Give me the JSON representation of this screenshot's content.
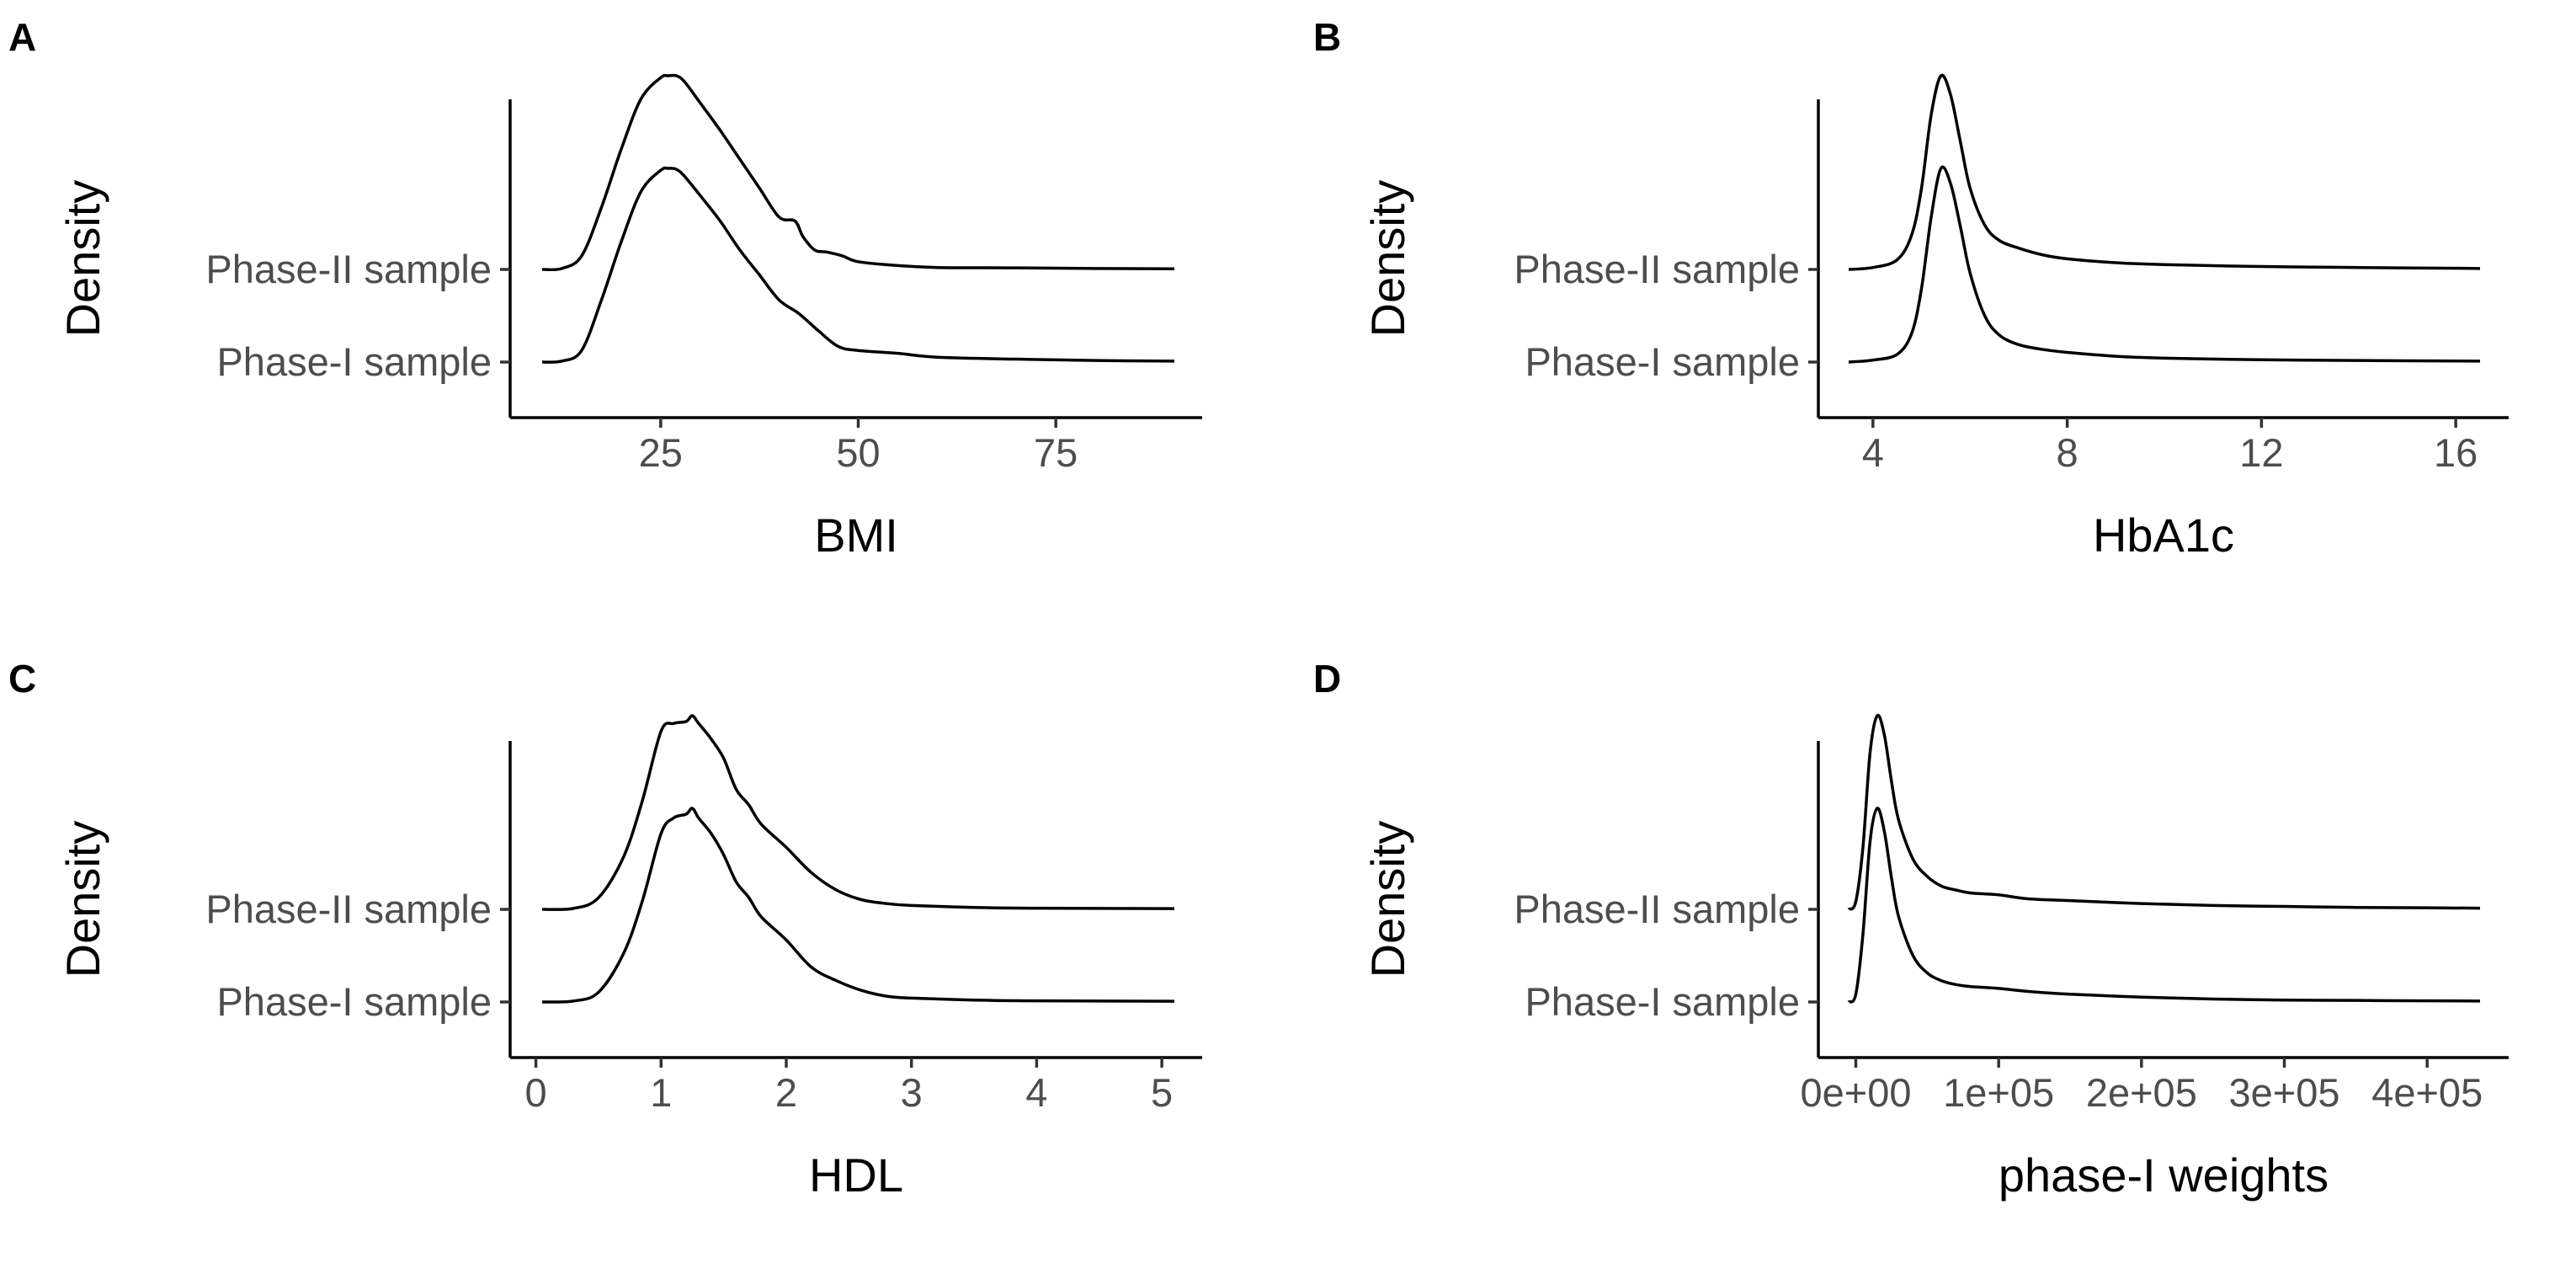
{
  "figure": {
    "chart_data": [
      {
        "panel": "A",
        "type": "area",
        "kind": "ridgeline-density",
        "xlabel": "BMI",
        "ylabel": "Density",
        "xlim": [
          10,
          90
        ],
        "xticks": [
          25,
          50,
          75
        ],
        "xtick_labels": [
          "25",
          "50",
          "75"
        ],
        "categories": [
          "Phase-I sample",
          "Phase-II sample"
        ],
        "series": [
          {
            "name": "Phase-I sample",
            "x": [
              10,
              12.5,
              15,
              17.5,
              20,
              22.5,
              25,
              26,
              27,
              28,
              30,
              32.5,
              35,
              37.5,
              40,
              42.5,
              45,
              47.5,
              50,
              55,
              60,
              70,
              80,
              90
            ],
            "y": [
              0.0,
              0.005,
              0.06,
              0.32,
              0.62,
              0.88,
              0.99,
              1.0,
              0.995,
              0.96,
              0.86,
              0.73,
              0.58,
              0.45,
              0.32,
              0.25,
              0.16,
              0.08,
              0.06,
              0.045,
              0.025,
              0.015,
              0.008,
              0.005
            ]
          },
          {
            "name": "Phase-II sample",
            "x": [
              10,
              12.5,
              15,
              17.5,
              20,
              22.5,
              25,
              26,
              27,
              28,
              30,
              32.5,
              35,
              37.5,
              40,
              42,
              43,
              44.5,
              46,
              48,
              50,
              55,
              60,
              70,
              80,
              90
            ],
            "y": [
              0.0,
              0.005,
              0.07,
              0.32,
              0.62,
              0.88,
              0.99,
              1.0,
              1.0,
              0.97,
              0.86,
              0.72,
              0.57,
              0.42,
              0.27,
              0.25,
              0.17,
              0.1,
              0.09,
              0.07,
              0.04,
              0.02,
              0.01,
              0.008,
              0.005,
              0.003
            ]
          }
        ]
      },
      {
        "panel": "B",
        "type": "area",
        "kind": "ridgeline-density",
        "xlabel": "HbA1c",
        "ylabel": "Density",
        "xlim": [
          3.5,
          16.5
        ],
        "xticks": [
          4,
          8,
          12,
          16
        ],
        "xtick_labels": [
          "4",
          "8",
          "12",
          "16"
        ],
        "categories": [
          "Phase-I sample",
          "Phase-II sample"
        ],
        "series": [
          {
            "name": "Phase-I sample",
            "x": [
              3.5,
              4.0,
              4.5,
              4.8,
              5.0,
              5.2,
              5.4,
              5.6,
              5.8,
              6.0,
              6.3,
              6.6,
              7.0,
              7.5,
              8.0,
              9.0,
              10,
              12,
              14,
              16.5
            ],
            "y": [
              0.0,
              0.01,
              0.04,
              0.15,
              0.38,
              0.75,
              1.0,
              0.92,
              0.7,
              0.46,
              0.24,
              0.14,
              0.09,
              0.065,
              0.05,
              0.03,
              0.02,
              0.012,
              0.008,
              0.005
            ]
          },
          {
            "name": "Phase-II sample",
            "x": [
              3.5,
              4.0,
              4.5,
              4.8,
              5.0,
              5.2,
              5.4,
              5.6,
              5.8,
              6.0,
              6.3,
              6.6,
              7.0,
              7.5,
              8.0,
              9.0,
              10,
              12,
              14,
              16.5
            ],
            "y": [
              0.0,
              0.01,
              0.05,
              0.18,
              0.42,
              0.8,
              1.0,
              0.9,
              0.66,
              0.42,
              0.23,
              0.15,
              0.11,
              0.075,
              0.055,
              0.035,
              0.025,
              0.015,
              0.01,
              0.005
            ]
          }
        ]
      },
      {
        "panel": "C",
        "type": "area",
        "kind": "ridgeline-density",
        "xlabel": "HDL",
        "ylabel": "Density",
        "xlim": [
          0.05,
          5.1
        ],
        "xticks": [
          0,
          1,
          2,
          3,
          4,
          5
        ],
        "xtick_labels": [
          "0",
          "1",
          "2",
          "3",
          "4",
          "5"
        ],
        "categories": [
          "Phase-I sample",
          "Phase-II sample"
        ],
        "series": [
          {
            "name": "Phase-I sample",
            "x": [
              0.05,
              0.3,
              0.5,
              0.7,
              0.85,
              1.0,
              1.1,
              1.2,
              1.25,
              1.3,
              1.4,
              1.5,
              1.6,
              1.7,
              1.8,
              2.0,
              2.2,
              2.4,
              2.6,
              2.8,
              3.0,
              3.5,
              4.0,
              5.1
            ],
            "y": [
              0.0,
              0.005,
              0.05,
              0.25,
              0.52,
              0.87,
              0.95,
              0.97,
              1.0,
              0.95,
              0.87,
              0.76,
              0.62,
              0.54,
              0.44,
              0.32,
              0.18,
              0.11,
              0.06,
              0.03,
              0.02,
              0.01,
              0.006,
              0.004
            ]
          },
          {
            "name": "Phase-II sample",
            "x": [
              0.05,
              0.3,
              0.5,
              0.7,
              0.85,
              1.0,
              1.1,
              1.2,
              1.25,
              1.3,
              1.4,
              1.5,
              1.6,
              1.7,
              1.8,
              2.0,
              2.2,
              2.4,
              2.6,
              2.8,
              3.0,
              3.5,
              4.0,
              5.1
            ],
            "y": [
              0.0,
              0.005,
              0.06,
              0.27,
              0.56,
              0.92,
              0.96,
              0.97,
              1.0,
              0.96,
              0.88,
              0.78,
              0.62,
              0.54,
              0.44,
              0.32,
              0.19,
              0.1,
              0.05,
              0.03,
              0.02,
              0.01,
              0.006,
              0.004
            ]
          }
        ]
      },
      {
        "panel": "D",
        "type": "area",
        "kind": "ridgeline-density",
        "xlabel": "phase-I weights",
        "ylabel": "Density",
        "xlim": [
          -5000,
          437000
        ],
        "xticks": [
          0,
          100000,
          200000,
          300000,
          400000
        ],
        "xtick_labels": [
          "0e+00",
          "1e+05",
          "2e+05",
          "3e+05",
          "4e+05"
        ],
        "categories": [
          "Phase-I sample",
          "Phase-II sample"
        ],
        "series": [
          {
            "name": "Phase-I sample",
            "x": [
              -5000,
              0,
              5000,
              10000,
              15000,
              20000,
              25000,
              30000,
              40000,
              50000,
              60000,
              70000,
              80000,
              100000,
              120000,
              150000,
              200000,
              250000,
              300000,
              350000,
              400000,
              437000
            ],
            "y": [
              0.0,
              0.04,
              0.35,
              0.83,
              1.0,
              0.88,
              0.64,
              0.44,
              0.24,
              0.15,
              0.11,
              0.09,
              0.08,
              0.07,
              0.055,
              0.04,
              0.025,
              0.015,
              0.01,
              0.008,
              0.006,
              0.005
            ]
          },
          {
            "name": "Phase-II sample",
            "x": [
              -5000,
              0,
              5000,
              10000,
              15000,
              20000,
              25000,
              30000,
              40000,
              50000,
              60000,
              70000,
              80000,
              100000,
              120000,
              150000,
              200000,
              250000,
              300000,
              350000,
              400000,
              437000
            ],
            "y": [
              0.0,
              0.04,
              0.32,
              0.81,
              1.0,
              0.9,
              0.66,
              0.46,
              0.26,
              0.17,
              0.12,
              0.1,
              0.085,
              0.075,
              0.055,
              0.045,
              0.03,
              0.02,
              0.015,
              0.01,
              0.008,
              0.006
            ]
          }
        ]
      }
    ]
  }
}
